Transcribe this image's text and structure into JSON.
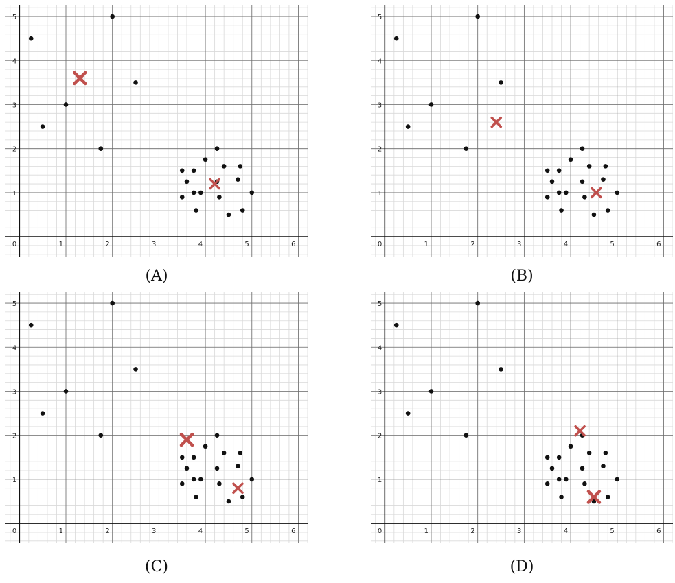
{
  "colors": {
    "points": "#111111",
    "centroid": "#c0504d",
    "grid_major": "#6e6e6e",
    "grid_minor": "#d9d9d9",
    "axis": "#111111"
  },
  "chart_data": [
    {
      "type": "scatter",
      "caption": "(A)",
      "xlim": [
        -0.3,
        6.2
      ],
      "ylim": [
        -0.45,
        5.25
      ],
      "x_ticks": [
        0,
        1,
        2,
        3,
        4,
        5,
        6
      ],
      "y_ticks": [
        1,
        2,
        3,
        4,
        5
      ],
      "grid": true,
      "points": [
        [
          0.25,
          4.5
        ],
        [
          2,
          5
        ],
        [
          1,
          3
        ],
        [
          2.5,
          3.5
        ],
        [
          0.5,
          2.5
        ],
        [
          1.75,
          2
        ],
        [
          4.25,
          2
        ],
        [
          4,
          1.75
        ],
        [
          3.5,
          1.5
        ],
        [
          3.75,
          1.5
        ],
        [
          4.4,
          1.6
        ],
        [
          4.75,
          1.6
        ],
        [
          3.6,
          1.25
        ],
        [
          4.25,
          1.25
        ],
        [
          4.7,
          1.3
        ],
        [
          3.75,
          1
        ],
        [
          3.9,
          1
        ],
        [
          5,
          1
        ],
        [
          3.5,
          0.9
        ],
        [
          4.3,
          0.9
        ],
        [
          3.8,
          0.6
        ],
        [
          4.8,
          0.6
        ],
        [
          4.5,
          0.5
        ]
      ],
      "centroids": [
        {
          "x": 1.3,
          "y": 3.6,
          "size": "large"
        },
        {
          "x": 4.2,
          "y": 1.2,
          "size": "small"
        }
      ]
    },
    {
      "type": "scatter",
      "caption": "(B)",
      "xlim": [
        -0.3,
        6.2
      ],
      "ylim": [
        -0.45,
        5.25
      ],
      "x_ticks": [
        0,
        1,
        2,
        3,
        4,
        5,
        6
      ],
      "y_ticks": [
        1,
        2,
        3,
        4,
        5
      ],
      "grid": true,
      "points": [
        [
          0.25,
          4.5
        ],
        [
          2,
          5
        ],
        [
          1,
          3
        ],
        [
          2.5,
          3.5
        ],
        [
          0.5,
          2.5
        ],
        [
          1.75,
          2
        ],
        [
          4.25,
          2
        ],
        [
          4,
          1.75
        ],
        [
          3.5,
          1.5
        ],
        [
          3.75,
          1.5
        ],
        [
          4.4,
          1.6
        ],
        [
          4.75,
          1.6
        ],
        [
          3.6,
          1.25
        ],
        [
          4.25,
          1.25
        ],
        [
          4.7,
          1.3
        ],
        [
          3.75,
          1
        ],
        [
          3.9,
          1
        ],
        [
          5,
          1
        ],
        [
          3.5,
          0.9
        ],
        [
          4.3,
          0.9
        ],
        [
          3.8,
          0.6
        ],
        [
          4.8,
          0.6
        ],
        [
          4.5,
          0.5
        ]
      ],
      "centroids": [
        {
          "x": 2.4,
          "y": 2.6,
          "size": "small"
        },
        {
          "x": 4.55,
          "y": 1.0,
          "size": "small"
        }
      ]
    },
    {
      "type": "scatter",
      "caption": "(C)",
      "xlim": [
        -0.3,
        6.2
      ],
      "ylim": [
        -0.45,
        5.25
      ],
      "x_ticks": [
        0,
        1,
        2,
        3,
        4,
        5,
        6
      ],
      "y_ticks": [
        1,
        2,
        3,
        4,
        5
      ],
      "grid": true,
      "points": [
        [
          0.25,
          4.5
        ],
        [
          2,
          5
        ],
        [
          1,
          3
        ],
        [
          2.5,
          3.5
        ],
        [
          0.5,
          2.5
        ],
        [
          1.75,
          2
        ],
        [
          4.25,
          2
        ],
        [
          4,
          1.75
        ],
        [
          3.5,
          1.5
        ],
        [
          3.75,
          1.5
        ],
        [
          4.4,
          1.6
        ],
        [
          4.75,
          1.6
        ],
        [
          3.6,
          1.25
        ],
        [
          4.25,
          1.25
        ],
        [
          4.7,
          1.3
        ],
        [
          3.75,
          1
        ],
        [
          3.9,
          1
        ],
        [
          5,
          1
        ],
        [
          3.5,
          0.9
        ],
        [
          4.3,
          0.9
        ],
        [
          3.8,
          0.6
        ],
        [
          4.8,
          0.6
        ],
        [
          4.5,
          0.5
        ]
      ],
      "centroids": [
        {
          "x": 3.6,
          "y": 1.9,
          "size": "large"
        },
        {
          "x": 4.7,
          "y": 0.8,
          "size": "small"
        }
      ]
    },
    {
      "type": "scatter",
      "caption": "(D)",
      "xlim": [
        -0.3,
        6.2
      ],
      "ylim": [
        -0.45,
        5.25
      ],
      "x_ticks": [
        0,
        1,
        2,
        3,
        4,
        5,
        6
      ],
      "y_ticks": [
        1,
        2,
        3,
        4,
        5
      ],
      "grid": true,
      "points": [
        [
          0.25,
          4.5
        ],
        [
          2,
          5
        ],
        [
          1,
          3
        ],
        [
          2.5,
          3.5
        ],
        [
          0.5,
          2.5
        ],
        [
          1.75,
          2
        ],
        [
          4.25,
          2
        ],
        [
          4,
          1.75
        ],
        [
          3.5,
          1.5
        ],
        [
          3.75,
          1.5
        ],
        [
          4.4,
          1.6
        ],
        [
          4.75,
          1.6
        ],
        [
          3.6,
          1.25
        ],
        [
          4.25,
          1.25
        ],
        [
          4.7,
          1.3
        ],
        [
          3.75,
          1
        ],
        [
          3.9,
          1
        ],
        [
          5,
          1
        ],
        [
          3.5,
          0.9
        ],
        [
          4.3,
          0.9
        ],
        [
          3.8,
          0.6
        ],
        [
          4.8,
          0.6
        ],
        [
          4.5,
          0.5
        ]
      ],
      "centroids": [
        {
          "x": 4.2,
          "y": 2.1,
          "size": "small"
        },
        {
          "x": 4.5,
          "y": 0.6,
          "size": "large"
        }
      ]
    }
  ]
}
